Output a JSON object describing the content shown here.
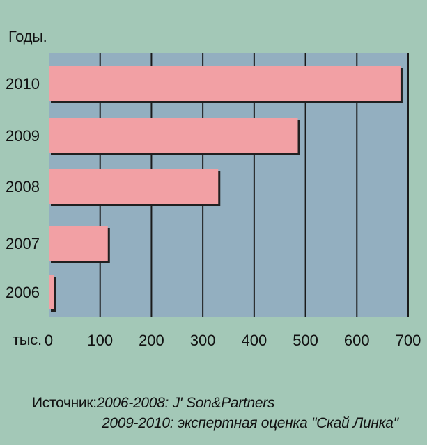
{
  "chart_data": {
    "type": "bar",
    "orientation": "horizontal",
    "categories": [
      "2010",
      "2009",
      "2008",
      "2007",
      "2006"
    ],
    "values": [
      685,
      485,
      330,
      115,
      10
    ],
    "xlim": [
      0,
      700
    ],
    "xticks": [
      "0",
      "100",
      "200",
      "300",
      "400",
      "500",
      "600",
      "700"
    ],
    "ylabel": "Годы.",
    "xlabel": "тыс.",
    "grid": true,
    "colors": {
      "background": "#a3c8b7",
      "plot_area": "#93afc0",
      "bar": "#f2a0a4",
      "bar_shadow": "#202020",
      "grid": "#1a1a1a"
    }
  },
  "source": {
    "prefix": "Источник:",
    "line1": "2006-2008: J' Son&Partners",
    "line2": "2009-2010: экспертная оценка \"Скай Линка\""
  }
}
